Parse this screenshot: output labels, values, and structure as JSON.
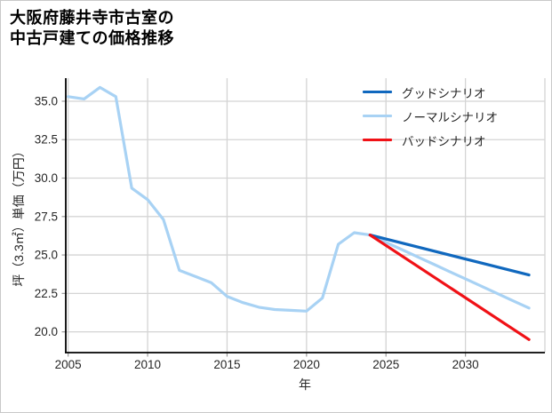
{
  "chart_data": {
    "type": "line",
    "title": "大阪府藤井寺市古室の中古戸建ての価格推移",
    "title_lines": [
      "大阪府藤井寺市古室の",
      "中古戸建ての価格推移"
    ],
    "xlabel": "年",
    "ylabel": "坪（3.3㎡）単価（万円）",
    "xlim": [
      2004.85,
      2035.0
    ],
    "ylim": [
      18.65,
      36.5
    ],
    "xticks": [
      2005,
      2010,
      2015,
      2020,
      2025,
      2030
    ],
    "xtick_labels": [
      "2005",
      "2010",
      "2015",
      "2020",
      "2025",
      "2030"
    ],
    "xgrid": [
      2005,
      2010,
      2015,
      2020,
      2025,
      2030,
      2035
    ],
    "yticks": [
      20.0,
      22.5,
      25.0,
      27.5,
      30.0,
      32.5,
      35.0
    ],
    "ytick_labels": [
      "20.0",
      "22.5",
      "25.0",
      "27.5",
      "30.0",
      "32.5",
      "35.0"
    ],
    "grid": true,
    "legend_position": "upper right",
    "colors": {
      "good": "#1068be",
      "normal": "#a8d2f4",
      "bad": "#f01116",
      "grid": "#d4d4d4",
      "spine": "#000000",
      "tick": "#9a9a9a",
      "tick_text": "#262626"
    },
    "legend": [
      {
        "id": "good",
        "label": "グッドシナリオ",
        "color": "#1068be"
      },
      {
        "id": "normal",
        "label": "ノーマルシナリオ",
        "color": "#a8d2f4"
      },
      {
        "id": "bad",
        "label": "バッドシナリオ",
        "color": "#f01116"
      }
    ],
    "series": [
      {
        "id": "normal",
        "name": "ノーマルシナリオ",
        "color": "#a8d2f4",
        "x": [
          2005,
          2006,
          2007,
          2008,
          2009,
          2010,
          2011,
          2012,
          2013,
          2014,
          2015,
          2016,
          2017,
          2018,
          2019,
          2020,
          2021,
          2022,
          2023,
          2024,
          2025,
          2026,
          2027,
          2028,
          2029,
          2030,
          2031,
          2032,
          2033,
          2034
        ],
        "y": [
          35.3,
          35.15,
          35.9,
          35.3,
          29.35,
          28.6,
          27.3,
          24.0,
          23.6,
          23.2,
          22.3,
          21.9,
          21.6,
          21.45,
          21.4,
          21.35,
          22.2,
          25.7,
          26.45,
          26.3,
          25.82,
          25.35,
          24.87,
          24.4,
          23.92,
          23.45,
          22.97,
          22.5,
          22.02,
          21.55
        ]
      },
      {
        "id": "good",
        "name": "グッドシナリオ",
        "color": "#1068be",
        "x": [
          2024,
          2034
        ],
        "y": [
          26.3,
          23.7
        ]
      },
      {
        "id": "bad",
        "name": "バッドシナリオ",
        "color": "#f01116",
        "x": [
          2024,
          2034
        ],
        "y": [
          26.3,
          19.5
        ]
      }
    ]
  }
}
